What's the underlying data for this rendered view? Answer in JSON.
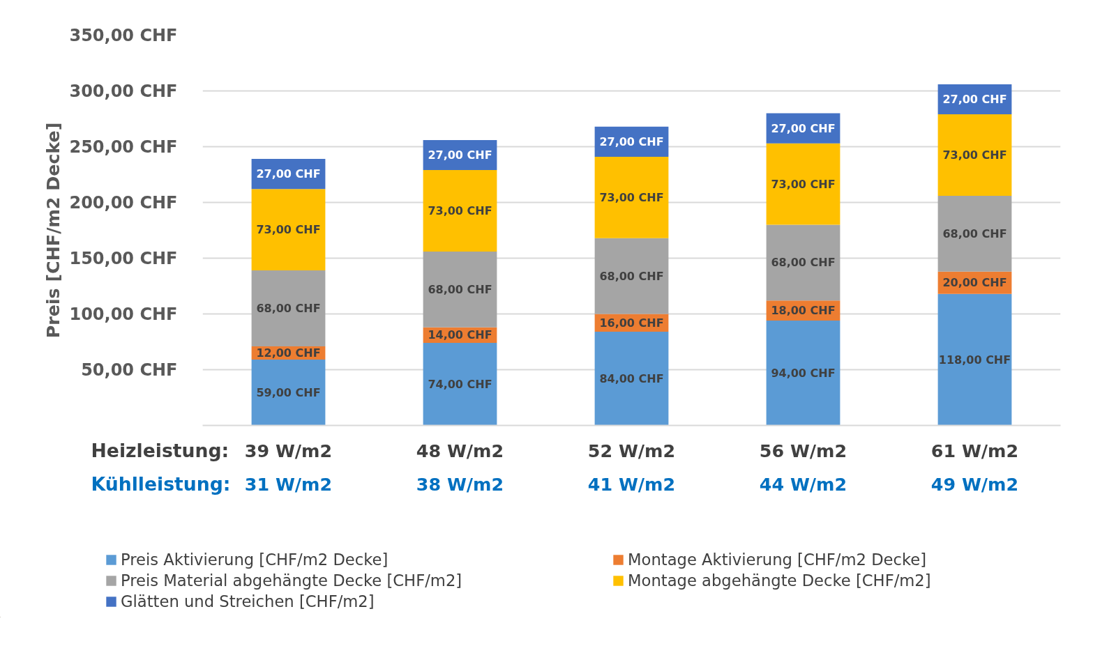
{
  "chart_data": {
    "type": "bar",
    "stacked": true,
    "ylabel": "Preis [CHF/m2 Decke]",
    "categories": [
      "39 W/m2\n31 W/m2",
      "48 W/m2\n38 W/m2",
      "52 W/m2\n41 W/m2",
      "56 W/m2\n44 W/m2",
      "61 W/m2\n49 W/m2"
    ],
    "annotations": [
      "Heizleistung:",
      "Kühlleistung:"
    ],
    "series": [
      {
        "name": "Preis Aktivierung [CHF/m2 Decke]",
        "color": "#5b9bd5",
        "values": [
          59,
          74,
          84,
          94,
          118
        ],
        "value_labels": [
          "59,00 CHF",
          "74,00 CHF",
          "84,00 CHF",
          "94,00 CHF",
          "118,00 CHF"
        ]
      },
      {
        "name": "Montage Aktivierung [CHF/m2 Decke]",
        "color": "#ed7d31",
        "values": [
          12,
          14,
          16,
          18,
          20
        ],
        "value_labels": [
          "12,00 CHF",
          "14,00 CHF",
          "16,00 CHF",
          "18,00 CHF",
          "20,00 CHF"
        ]
      },
      {
        "name": "Preis Material abgehängte Decke [CHF/m2]",
        "color": "#a5a5a5",
        "values": [
          68,
          68,
          68,
          68,
          68
        ],
        "value_labels": [
          "68,00 CHF",
          "68,00 CHF",
          "68,00 CHF",
          "68,00 CHF",
          "68,00 CHF"
        ]
      },
      {
        "name": "Montage abgehängte Decke [CHF/m2]",
        "color": "#ffc000",
        "values": [
          73,
          73,
          73,
          73,
          73
        ],
        "value_labels": [
          "73,00 CHF",
          "73,00 CHF",
          "73,00 CHF",
          "73,00 CHF",
          "73,00 CHF"
        ]
      },
      {
        "name": "Glätten und Streichen [CHF/m2]",
        "color": "#4472c4",
        "values": [
          27,
          27,
          27,
          27,
          27
        ],
        "value_labels": [
          "27,00 CHF",
          "27,00 CHF",
          "27,00 CHF",
          "27,00 CHF",
          "27,00 CHF"
        ]
      }
    ],
    "ylim": [
      0,
      350
    ],
    "yticks": [
      {
        "value": 50,
        "label": "50,00 CHF"
      },
      {
        "value": 100,
        "label": "100,00 CHF"
      },
      {
        "value": 150,
        "label": "150,00 CHF"
      },
      {
        "value": 200,
        "label": "200,00 CHF"
      },
      {
        "value": 250,
        "label": "250,00 CHF"
      },
      {
        "value": 300,
        "label": "300,00 CHF"
      },
      {
        "value": 350,
        "label": "350,00 CHF"
      }
    ],
    "grid": "y",
    "legend": "bottom"
  }
}
